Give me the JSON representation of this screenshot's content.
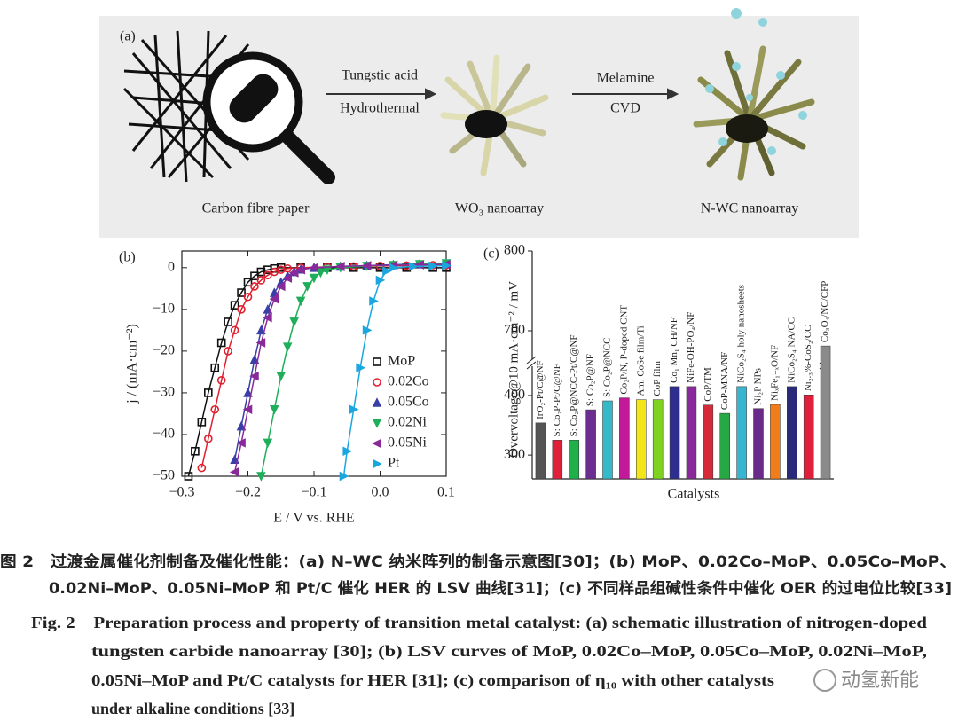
{
  "panel_a": {
    "label": "(a)",
    "step1_top": "Tungstic acid",
    "step1_bottom": "Hydrothermal",
    "step2_top": "Melamine",
    "step2_bottom": "CVD",
    "stage1": "Carbon fibre paper",
    "stage2": "WO₃ nanoarray",
    "stage3": "N-WC nanoarray"
  },
  "chart_data": [
    {
      "type": "line",
      "panel": "(b)",
      "xlabel": "E / V vs. RHE",
      "ylabel": "j / (mA·cm⁻²)",
      "xlim": [
        -0.3,
        0.1
      ],
      "ylim": [
        -50,
        4
      ],
      "xticks": [
        {
          "value": -0.3,
          "label": "−0.3"
        },
        {
          "value": -0.2,
          "label": "−0.2"
        },
        {
          "value": -0.1,
          "label": "−0.1"
        },
        {
          "value": 0,
          "label": "0.0"
        },
        0.1
      ],
      "yticks": [
        0,
        {
          "value": -10,
          "label": "−10"
        },
        {
          "value": -20,
          "label": "−20"
        },
        {
          "value": -30,
          "label": "−30"
        },
        {
          "value": -40,
          "label": "−40"
        },
        {
          "value": -50,
          "label": "−50"
        }
      ],
      "legend": "lower right",
      "series": [
        {
          "name": "MoP",
          "color": "#111111",
          "marker": "square",
          "open": true,
          "x": [
            -0.29,
            -0.28,
            -0.27,
            -0.26,
            -0.25,
            -0.24,
            -0.23,
            -0.22,
            -0.21,
            -0.2,
            -0.19,
            -0.18,
            -0.17,
            -0.16,
            -0.15,
            -0.12,
            -0.08,
            -0.04,
            0,
            0.04,
            0.08,
            0.1
          ],
          "values": [
            -50,
            -44,
            -37,
            -30,
            -24,
            -18,
            -13,
            -9,
            -6,
            -3.5,
            -2,
            -1,
            -0.5,
            -0.2,
            0,
            0,
            0,
            0,
            0,
            0,
            0,
            0
          ]
        },
        {
          "name": "0.02Co",
          "color": "#e0202e",
          "marker": "circle",
          "open": true,
          "x": [
            -0.27,
            -0.26,
            -0.25,
            -0.24,
            -0.23,
            -0.22,
            -0.21,
            -0.2,
            -0.19,
            -0.18,
            -0.17,
            -0.16,
            -0.15,
            -0.14,
            -0.12,
            -0.08,
            -0.04,
            0,
            0.04,
            0.08,
            0.1
          ],
          "values": [
            -48,
            -41,
            -34,
            -27,
            -20,
            -15,
            -10,
            -7,
            -4.5,
            -3,
            -1.8,
            -1,
            -0.5,
            -0.2,
            0,
            0.2,
            0.3,
            0.4,
            0.5,
            0.6,
            0.6
          ]
        },
        {
          "name": "0.05Co",
          "color": "#3a3fa8",
          "marker": "triangle-up",
          "open": false,
          "x": [
            -0.22,
            -0.21,
            -0.2,
            -0.19,
            -0.18,
            -0.17,
            -0.16,
            -0.15,
            -0.14,
            -0.13,
            -0.12,
            -0.1,
            -0.06,
            -0.02,
            0.02,
            0.06,
            0.1
          ],
          "values": [
            -46,
            -38,
            -30,
            -22,
            -15,
            -10,
            -6,
            -3.5,
            -2,
            -1,
            -0.4,
            0,
            0.3,
            0.5,
            0.7,
            0.9,
            1
          ]
        },
        {
          "name": "0.02Ni",
          "color": "#1fae5a",
          "marker": "triangle-down",
          "open": false,
          "x": [
            -0.18,
            -0.17,
            -0.16,
            -0.15,
            -0.14,
            -0.13,
            -0.12,
            -0.11,
            -0.1,
            -0.09,
            -0.08,
            -0.06,
            -0.02,
            0.02,
            0.06,
            0.1
          ],
          "values": [
            -50,
            -42,
            -34,
            -26,
            -19,
            -13,
            -8,
            -4.5,
            -2.5,
            -1.2,
            -0.5,
            0,
            0.4,
            0.6,
            0.8,
            1
          ]
        },
        {
          "name": "0.05Ni",
          "color": "#8a2a9a",
          "marker": "triangle-left",
          "open": false,
          "x": [
            -0.22,
            -0.21,
            -0.2,
            -0.19,
            -0.18,
            -0.17,
            -0.16,
            -0.15,
            -0.14,
            -0.13,
            -0.12,
            -0.1,
            -0.06,
            -0.02,
            0.02,
            0.06,
            0.1
          ],
          "values": [
            -49,
            -42,
            -34,
            -26,
            -18,
            -12,
            -7.5,
            -4.5,
            -2.5,
            -1.2,
            -0.5,
            0,
            0.3,
            0.5,
            0.6,
            0.7,
            0.8
          ]
        },
        {
          "name": "Pt",
          "color": "#1aa6df",
          "marker": "triangle-right",
          "open": false,
          "x": [
            -0.055,
            -0.05,
            -0.04,
            -0.03,
            -0.02,
            -0.01,
            0,
            0.01,
            0.02,
            0.05,
            0.08,
            0.1
          ],
          "values": [
            -50,
            -44,
            -34,
            -24,
            -15,
            -8,
            -3,
            -0.8,
            0,
            0.3,
            0.4,
            0.5
          ]
        }
      ]
    },
    {
      "type": "bar",
      "panel": "(c)",
      "xlabel": "Catalysts",
      "ylabel": "Overvoltage@10 mA·cm⁻² / mV",
      "ylim": [
        260,
        800
      ],
      "ybreak": [
        455,
        660
      ],
      "yticks": [
        300,
        400,
        700,
        800
      ],
      "categories": [
        "IrO₂-Pt/C@NF",
        "S: Co₂P-Pt/C@NF",
        "S: Co₂P@NCC-Pt/C@NF",
        "S: Co₂P@NF",
        "S: Co₂P@NCC",
        "Co₂P/N, P-doped CNT",
        "Am. CoSe film/Ti",
        "CoP film",
        "Co₁ Mn₁ CH/NF",
        "NiFe-OH-PO₄/NF",
        "CoP/TM",
        "CoP-MNA/NF",
        "NiCo₂S₄ holy nanosheets",
        "Ni₂P NPs",
        "NiₓFe₁₋ₓO/NF",
        "NiCo₂S₄ NA/CC",
        "Ni₂.₃%-CoS₂/CC",
        "Co₃O₄/NC/CFP"
      ],
      "values": [
        354,
        325,
        325,
        376,
        391,
        396,
        393,
        393,
        415,
        415,
        384,
        370,
        415,
        378,
        385,
        415,
        401,
        681
      ],
      "colors": [
        "#555555",
        "#e0203a",
        "#1fb04a",
        "#6c2d91",
        "#35b8c8",
        "#c2189a",
        "#f2e51a",
        "#7ed321",
        "#2e2e8f",
        "#8a2a9a",
        "#d42a3a",
        "#27a844",
        "#3ab5d0",
        "#6a2a8a",
        "#f07d1a",
        "#2a2a7a",
        "#e0203a",
        "#8a8a8a"
      ]
    }
  ],
  "caption": {
    "cn": [
      "图 2　过渡金属催化剂制备及催化性能：(a) N–WC 纳米阵列的制备示意图[30]；(b) MoP、0.02Co–MoP、0.05Co–MoP、",
      "0.02Ni–MoP、0.05Ni–MoP 和 Pt/C 催化 HER 的 LSV 曲线[31]；(c) 不同样品组碱性条件中催化 OER 的过电位比较[33]"
    ],
    "en": [
      "Fig. 2　Preparation process and property of transition metal catalyst: (a) schematic illustration of nitrogen-doped",
      "tungsten carbide nanoarray [30]; (b) LSV curves of MoP, 0.02Co–MoP, 0.05Co–MoP, 0.02Ni–MoP,",
      "0.05Ni–MoP and Pt/C catalysts for HER [31]; (c) comparison of η₁₀ with other catalysts",
      "under alkaline conditions [33]"
    ]
  },
  "watermark": "动氢新能"
}
